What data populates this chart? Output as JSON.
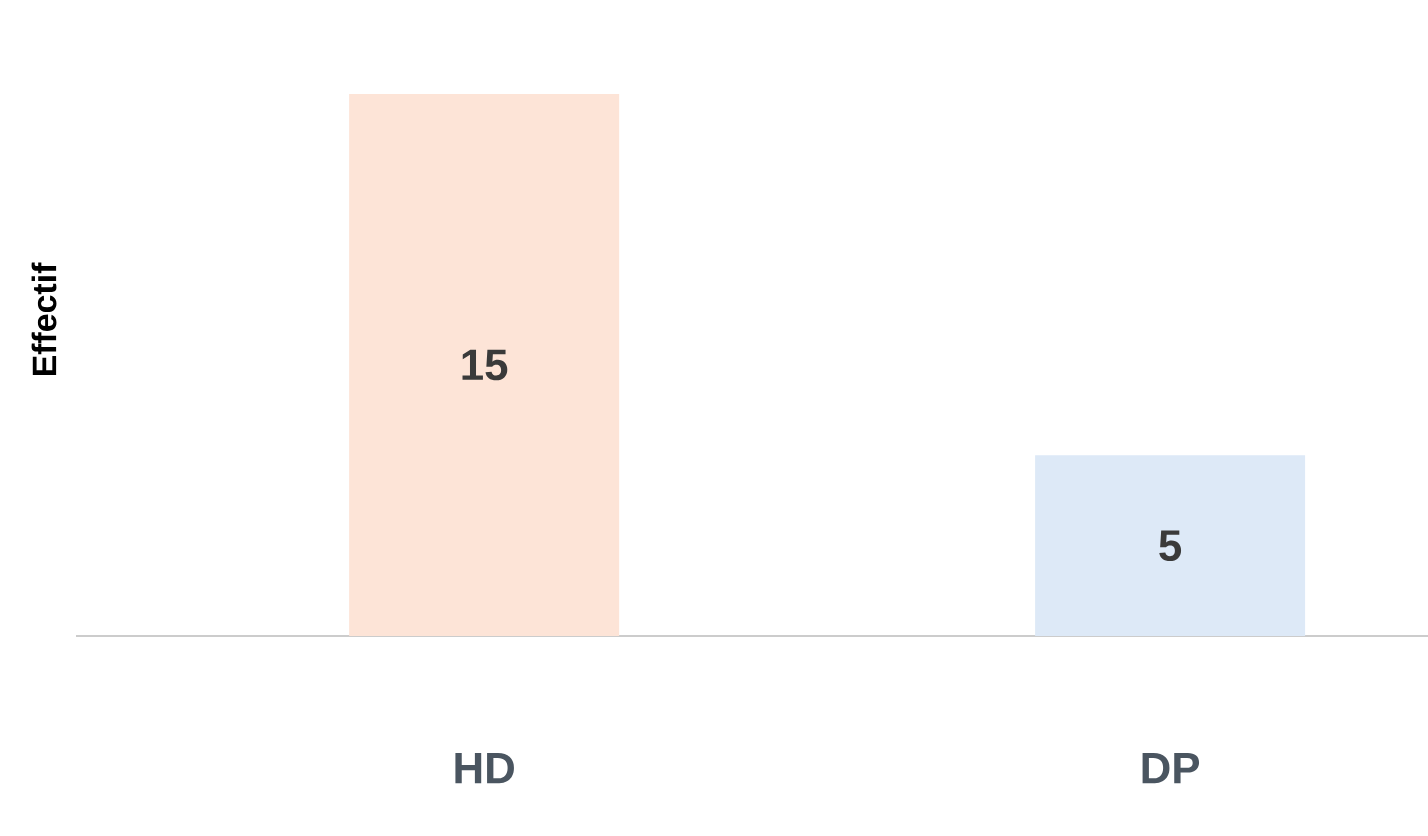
{
  "chart_data": {
    "type": "bar",
    "ylabel": "Effectif",
    "categories": [
      "HD",
      "DP"
    ],
    "values": [
      15,
      5
    ],
    "colors": [
      "#fde4d7",
      "#dde9f7"
    ],
    "data_labels": true,
    "grid": false
  }
}
